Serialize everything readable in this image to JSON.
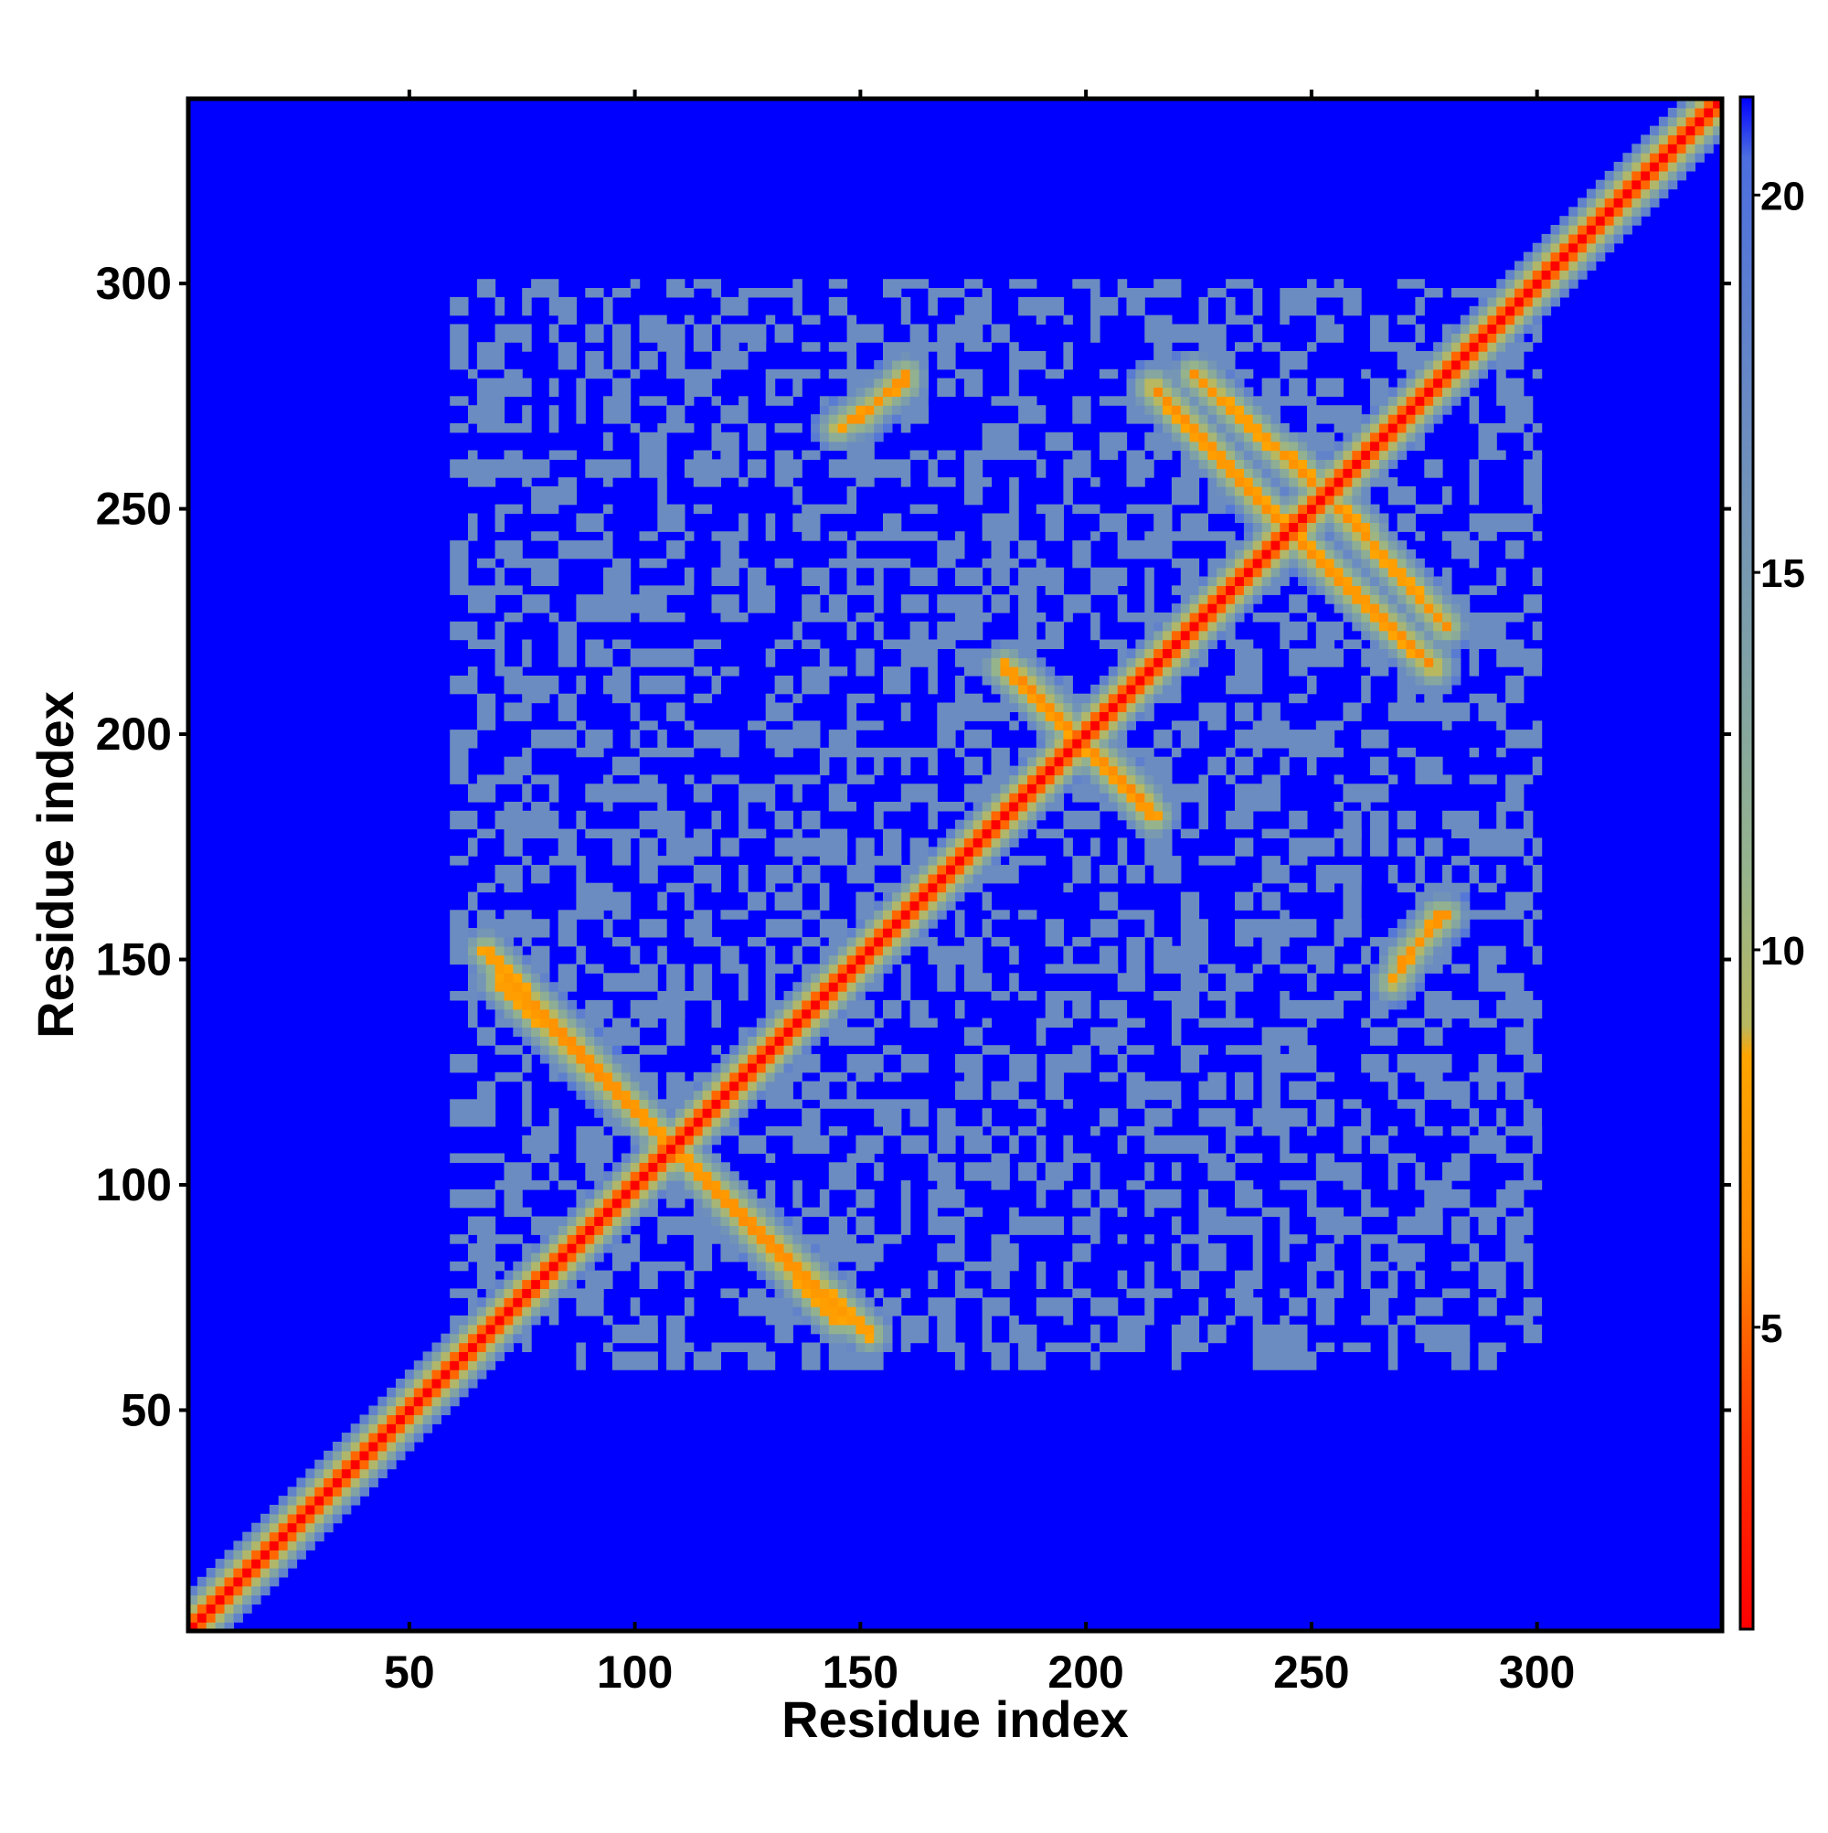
{
  "chart_data": {
    "type": "heatmap",
    "title": "",
    "xlabel": "Residue index",
    "ylabel": "Residue index",
    "xlim": [
      1,
      341
    ],
    "ylim": [
      1,
      341
    ],
    "x_ticks": [
      50,
      100,
      150,
      200,
      250,
      300
    ],
    "y_ticks": [
      50,
      100,
      150,
      200,
      250,
      300
    ],
    "colorbar": {
      "range": [
        1,
        21.3
      ],
      "ticks": [
        5,
        10,
        15,
        20
      ],
      "colors": [
        {
          "value": 1.0,
          "color": "#ff0000"
        },
        {
          "value": 3.5,
          "color": "#ff3300"
        },
        {
          "value": 6.0,
          "color": "#ff8800"
        },
        {
          "value": 8.6,
          "color": "#ffa500"
        },
        {
          "value": 9.0,
          "color": "#b8b860"
        },
        {
          "value": 11.0,
          "color": "#96b48c"
        },
        {
          "value": 14.0,
          "color": "#7ea0a8"
        },
        {
          "value": 17.0,
          "color": "#6b8cc0"
        },
        {
          "value": 20.5,
          "color": "#4c6ee0"
        },
        {
          "value": 21.3,
          "color": "#0000ff"
        }
      ]
    },
    "background_value": 21.3,
    "matrix_symmetric": true,
    "structure": {
      "diagonal": {
        "from": 1,
        "to": 341,
        "value": 1.0
      },
      "antiparallel_contacts": [
        {
          "from": [
            67,
            152
          ],
          "to": [
            145,
            70
          ],
          "min_value": 6.5
        },
        {
          "from": [
            185,
            213
          ],
          "to": [
            215,
            182
          ],
          "min_value": 6.0
        },
        {
          "from": [
            215,
            277
          ],
          "to": [
            247,
            243
          ],
          "min_value": 6.0
        },
        {
          "from": [
            245,
            262
          ],
          "to": [
            280,
            224
          ],
          "min_value": 6.5
        }
      ],
      "parallel_contacts": [
        {
          "from": [
            145,
            268
          ],
          "to": [
            160,
            278
          ],
          "min_value": 7.0
        },
        {
          "from": [
            270,
            150
          ],
          "to": [
            280,
            160
          ],
          "min_value": 7.0
        }
      ],
      "diffuse_regions": [
        {
          "x": [
            60,
            300
          ],
          "y": [
            60,
            300
          ],
          "value": 17.0
        }
      ]
    }
  }
}
